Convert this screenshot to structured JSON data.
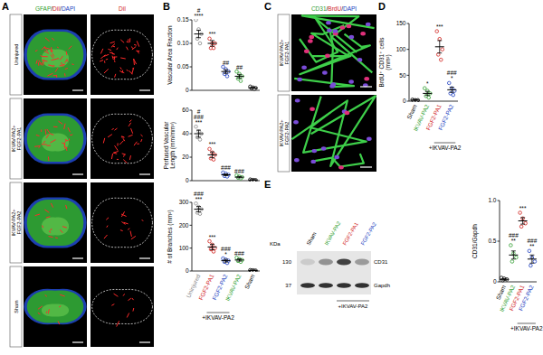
{
  "panel_labels": [
    "A",
    "B",
    "C",
    "D",
    "E"
  ],
  "panel_a": {
    "columns": [
      {
        "segments": [
          {
            "text": "GFAP",
            "color": "#2e9e2e"
          },
          {
            "text": "/",
            "color": "#000000"
          },
          {
            "text": "DiI",
            "color": "#d0201a"
          },
          {
            "text": "/",
            "color": "#000000"
          },
          {
            "text": "DAPI",
            "color": "#2040c0"
          }
        ]
      },
      {
        "segments": [
          {
            "text": "DiI",
            "color": "#d0201a"
          }
        ]
      }
    ],
    "rows": [
      [
        "Uninjured"
      ],
      [
        "IKVAV-PA2+",
        "FGF2-PA1"
      ],
      [
        "IKVAV-PA2+",
        "FGF2-PA2"
      ],
      [
        "Sham"
      ]
    ]
  },
  "panel_c": {
    "header": {
      "segments": [
        {
          "text": "CD31",
          "color": "#2e9e2e"
        },
        {
          "text": "/",
          "color": "#000000"
        },
        {
          "text": "BrdU",
          "color": "#d0201a"
        },
        {
          "text": "/",
          "color": "#000000"
        },
        {
          "text": "DAPI",
          "color": "#2040c0"
        }
      ]
    },
    "rows": [
      [
        "IKVAV-PA2+",
        "FGF2-PA1"
      ],
      [
        "IKVAV-PA2+",
        "FGF2-PA2"
      ]
    ]
  },
  "panel_e_blot": {
    "kda": "KDa",
    "lanes": [
      "Sham",
      "IKVAV-PA2",
      "FGF2-PA1",
      "FGF2-PA2"
    ],
    "group": {
      "label": "+IKVAV-PA2",
      "lanes": [
        2,
        3
      ]
    },
    "markers": [
      "130",
      "37"
    ],
    "proteins": [
      "CD31",
      "Gapdh"
    ]
  },
  "chart_data": [
    {
      "type": "dot",
      "y_label": [
        "Vascular Area Fraction"
      ],
      "categories": [
        "Uninjured",
        "FGF2-PA1",
        "FGF2-PA2",
        "IKVAV-PA2",
        "Sham"
      ],
      "colors": [
        "#888888",
        "#d0201a",
        "#2040c0",
        "#2e9e2e",
        "#000000"
      ],
      "values": [
        0.12,
        0.1,
        0.04,
        0.03,
        0.005
      ],
      "errors": [
        0.008,
        0.006,
        0.004,
        0.004,
        0.001
      ],
      "points": [
        [
          0.15,
          0.13,
          0.12,
          0.11,
          0.1
        ],
        [
          0.11,
          0.1,
          0.1,
          0.09,
          0.09
        ],
        [
          0.05,
          0.045,
          0.04,
          0.035,
          0.03
        ],
        [
          0.04,
          0.035,
          0.03,
          0.025,
          0.02
        ],
        [
          0.008,
          0.006,
          0.005,
          0.004,
          0.003
        ]
      ],
      "ylim": [
        0,
        0.15
      ],
      "yticks": [
        0,
        0.05,
        {
          "value": 0.1,
          "label": "0.10"
        },
        0.15
      ],
      "annotations": [
        {
          "category": 0,
          "lines": [
            "#",
            "****"
          ]
        },
        {
          "category": 1,
          "lines": [
            "***"
          ]
        },
        {
          "category": 2,
          "lines": [
            "##"
          ]
        },
        {
          "category": 3,
          "lines": [
            "##"
          ]
        }
      ],
      "tick_labels": "y"
    },
    {
      "type": "dot",
      "y_label": [
        "Perfused Vascular",
        "Length (mm/mm³)"
      ],
      "categories": [
        "Uninjured",
        "FGF2-PA1",
        "FGF2-PA2",
        "IKVAV-PA2",
        "Sham"
      ],
      "colors": [
        "#888888",
        "#d0201a",
        "#2040c0",
        "#2e9e2e",
        "#000000"
      ],
      "values": [
        40,
        22,
        5,
        3,
        0.5
      ],
      "errors": [
        3,
        2.5,
        0.8,
        0.6,
        0.2
      ],
      "points": [
        [
          46,
          42,
          40,
          37,
          35
        ],
        [
          27,
          24,
          22,
          19,
          18
        ],
        [
          7,
          6,
          5,
          4,
          3.5
        ],
        [
          4.5,
          3.5,
          3,
          2.5,
          2
        ],
        [
          1,
          0.6,
          0.5,
          0.3,
          0.2
        ]
      ],
      "ylim": [
        0,
        60
      ],
      "yticks": [
        0,
        20,
        40,
        60
      ],
      "annotations": [
        {
          "category": 0,
          "lines": [
            "#",
            "###",
            "***"
          ]
        },
        {
          "category": 1,
          "lines": [
            "***"
          ]
        },
        {
          "category": 2,
          "lines": [
            "###"
          ]
        },
        {
          "category": 3,
          "lines": [
            "###"
          ]
        }
      ],
      "tick_labels": "y"
    },
    {
      "type": "dot",
      "y_label": [
        "# of Branches (mm²)"
      ],
      "categories": [
        "Uninjured",
        "FGF2-PA1",
        "FGF2-PA2",
        "IKVAV-PA2",
        "Sham"
      ],
      "colors": [
        "#888888",
        "#d0201a",
        "#2040c0",
        "#2e9e2e",
        "#000000"
      ],
      "values": [
        270,
        105,
        45,
        48,
        2
      ],
      "errors": [
        12,
        12,
        6,
        5,
        1
      ],
      "points": [
        [
          295,
          280,
          270,
          255,
          250
        ],
        [
          130,
          115,
          100,
          95,
          85
        ],
        [
          55,
          50,
          45,
          40,
          35
        ],
        [
          58,
          52,
          48,
          44,
          40
        ],
        [
          4,
          3,
          2,
          1,
          0.5
        ]
      ],
      "ylim": [
        0,
        300
      ],
      "yticks": [
        0,
        100,
        200,
        300
      ],
      "annotations": [
        {
          "category": 0,
          "lines": [
            "###",
            "***"
          ]
        },
        {
          "category": 1,
          "lines": [
            "***"
          ]
        },
        {
          "category": 2,
          "lines": [
            "###",
            "*"
          ]
        },
        {
          "category": 3,
          "lines": [
            "###"
          ]
        }
      ],
      "group": {
        "label": "+IKVAV-PA2",
        "categories": [
          1,
          2
        ]
      }
    },
    {
      "type": "dot",
      "y_label": [
        "BrdU⁺ CD31⁺ cells",
        "(mm²)"
      ],
      "categories": [
        "Sham",
        "IKVAV-PA2",
        "FGF2-PA1",
        "FGF2-PA2"
      ],
      "colors": [
        "#000000",
        "#2e9e2e",
        "#d0201a",
        "#2040c0"
      ],
      "values": [
        2,
        15,
        105,
        22
      ],
      "errors": [
        1,
        4,
        12,
        5
      ],
      "points": [
        [
          3,
          2,
          2,
          1,
          1
        ],
        [
          25,
          20,
          15,
          10,
          7
        ],
        [
          135,
          120,
          100,
          90,
          80
        ],
        [
          35,
          25,
          20,
          15,
          12
        ]
      ],
      "ylim": [
        0,
        150
      ],
      "yticks": [
        0,
        50,
        100,
        150
      ],
      "annotations": [
        {
          "category": 1,
          "lines": [
            "*"
          ]
        },
        {
          "category": 2,
          "lines": [
            "***"
          ]
        },
        {
          "category": 3,
          "lines": [
            "###",
            "*"
          ]
        }
      ],
      "group": {
        "label": "+IKVAV-PA2",
        "categories": [
          2,
          3
        ]
      }
    },
    {
      "type": "dot",
      "y_label": [
        "CD31/Gapdh"
      ],
      "categories": [
        "Sham",
        "IKVAV-PA2",
        "FGF2-PA1",
        "FGF2-PA2"
      ],
      "colors": [
        "#000000",
        "#2e9e2e",
        "#d0201a",
        "#2040c0"
      ],
      "values": [
        0.03,
        0.33,
        0.75,
        0.28
      ],
      "errors": [
        0.01,
        0.05,
        0.04,
        0.05
      ],
      "points": [
        [
          0.05,
          0.04,
          0.03,
          0.02
        ],
        [
          0.45,
          0.35,
          0.3,
          0.25
        ],
        [
          0.85,
          0.78,
          0.72,
          0.68
        ],
        [
          0.38,
          0.3,
          0.25,
          0.2
        ]
      ],
      "ylim": [
        0,
        1
      ],
      "yticks": [
        0,
        0.5,
        {
          "value": 1,
          "label": "1.0"
        }
      ],
      "annotations": [
        {
          "category": 1,
          "lines": [
            "###",
            "**"
          ]
        },
        {
          "category": 2,
          "lines": [
            "***"
          ]
        },
        {
          "category": 3,
          "lines": [
            "###",
            "**"
          ]
        }
      ],
      "group": {
        "label": "+IKVAV-PA2",
        "categories": [
          2,
          3
        ]
      }
    }
  ]
}
